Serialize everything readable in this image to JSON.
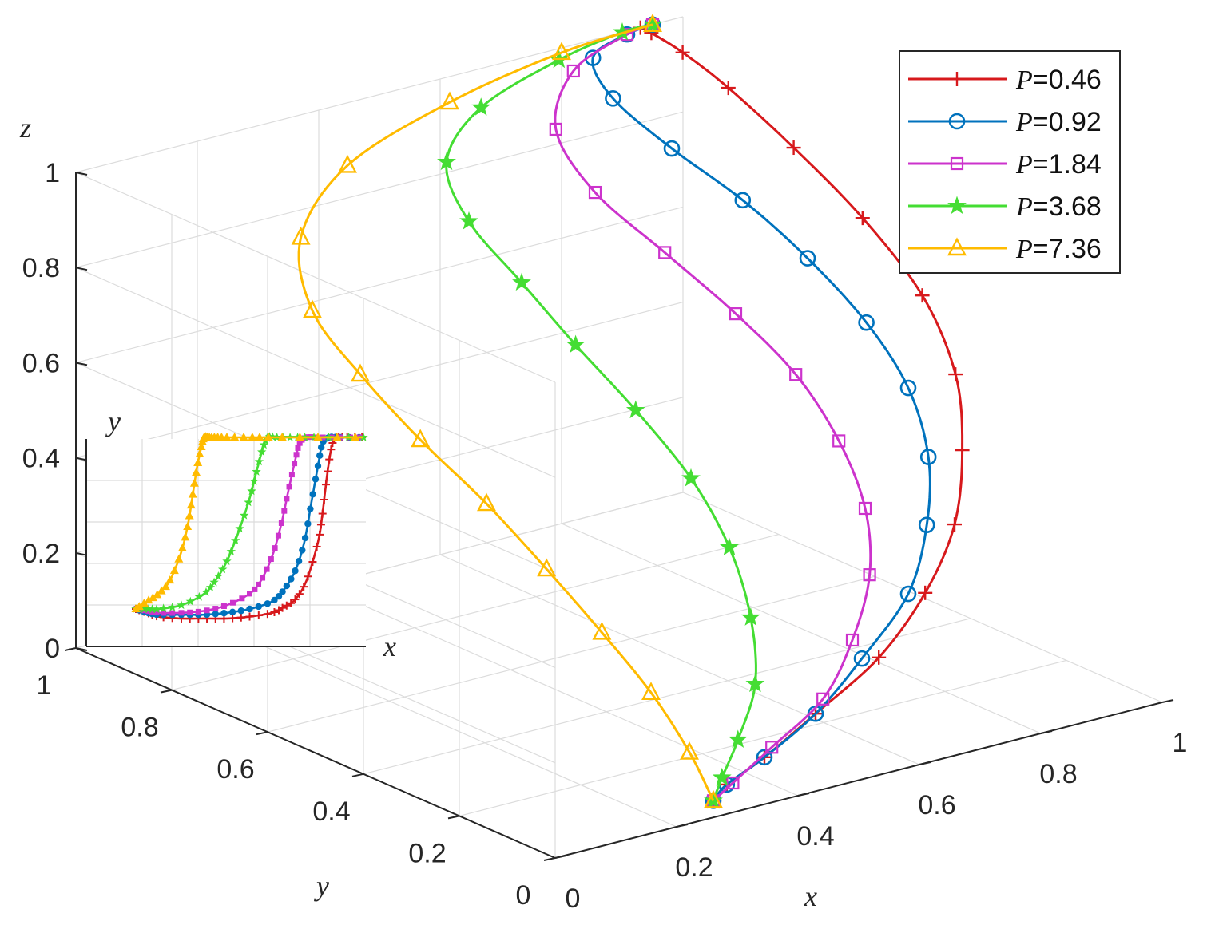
{
  "chart_data": {
    "type": "line",
    "projection": "3d",
    "title": "",
    "xlabel": "x",
    "ylabel": "y",
    "zlabel": "z",
    "xlim": [
      0,
      1
    ],
    "ylim": [
      0,
      1
    ],
    "zlim": [
      0,
      1
    ],
    "xticks": [
      "0",
      "0.2",
      "0.4",
      "0.6",
      "0.8",
      "1"
    ],
    "yticks": [
      "0",
      "0.2",
      "0.4",
      "0.6",
      "0.8",
      "1"
    ],
    "zticks": [
      "0",
      "0.2",
      "0.4",
      "0.6",
      "0.8",
      "1"
    ],
    "grid": true,
    "legend_position": "top-right",
    "series": [
      {
        "name": "=0.46",
        "color": "#d7191c",
        "marker": "plus",
        "x": [
          0.3,
          0.33,
          0.4,
          0.5,
          0.62,
          0.72,
          0.8,
          0.86,
          0.92,
          0.96,
          0.98,
          0.985,
          0.98,
          0.96,
          0.94,
          0.93
        ],
        "y": [
          0.05,
          0.06,
          0.07,
          0.09,
          0.11,
          0.14,
          0.18,
          0.24,
          0.33,
          0.45,
          0.6,
          0.75,
          0.88,
          0.95,
          0.99,
          1.0
        ],
        "z": [
          0.0,
          0.02,
          0.05,
          0.1,
          0.17,
          0.26,
          0.36,
          0.47,
          0.57,
          0.67,
          0.76,
          0.84,
          0.91,
          0.96,
          0.99,
          1.0
        ]
      },
      {
        "name": "=0.92",
        "color": "#0072bd",
        "marker": "circle",
        "x": [
          0.3,
          0.33,
          0.4,
          0.5,
          0.6,
          0.7,
          0.77,
          0.82,
          0.85,
          0.86,
          0.85,
          0.83,
          0.8,
          0.79,
          0.82,
          0.9,
          0.95
        ],
        "y": [
          0.05,
          0.06,
          0.07,
          0.09,
          0.12,
          0.15,
          0.2,
          0.26,
          0.34,
          0.44,
          0.55,
          0.66,
          0.77,
          0.88,
          0.96,
          0.99,
          1.0
        ],
        "z": [
          0.0,
          0.02,
          0.05,
          0.1,
          0.17,
          0.26,
          0.36,
          0.46,
          0.56,
          0.65,
          0.74,
          0.82,
          0.89,
          0.95,
          0.99,
          1.0,
          1.0
        ]
      },
      {
        "name": "=1.84",
        "color": "#cc33cc",
        "marker": "square",
        "x": [
          0.3,
          0.34,
          0.42,
          0.52,
          0.6,
          0.66,
          0.7,
          0.72,
          0.72,
          0.7,
          0.67,
          0.65,
          0.68,
          0.78,
          0.9,
          0.95
        ],
        "y": [
          0.05,
          0.06,
          0.08,
          0.1,
          0.14,
          0.18,
          0.24,
          0.32,
          0.41,
          0.51,
          0.62,
          0.74,
          0.86,
          0.95,
          0.99,
          1.0
        ],
        "z": [
          0.0,
          0.02,
          0.06,
          0.12,
          0.2,
          0.3,
          0.4,
          0.5,
          0.6,
          0.69,
          0.78,
          0.86,
          0.93,
          0.98,
          1.0,
          1.0
        ]
      },
      {
        "name": "=3.68",
        "color": "#44dd33",
        "marker": "star",
        "x": [
          0.3,
          0.33,
          0.38,
          0.44,
          0.48,
          0.5,
          0.5,
          0.48,
          0.46,
          0.45,
          0.45,
          0.5,
          0.62,
          0.78,
          0.9,
          0.95
        ],
        "y": [
          0.05,
          0.07,
          0.1,
          0.14,
          0.2,
          0.27,
          0.35,
          0.44,
          0.54,
          0.64,
          0.75,
          0.86,
          0.94,
          0.98,
          1.0,
          1.0
        ],
        "z": [
          0.0,
          0.03,
          0.08,
          0.16,
          0.26,
          0.37,
          0.48,
          0.59,
          0.69,
          0.78,
          0.86,
          0.92,
          0.96,
          0.99,
          1.0,
          1.0
        ]
      },
      {
        "name": "=7.36",
        "color": "#ffbb00",
        "marker": "triangle",
        "x": [
          0.3,
          0.3,
          0.3,
          0.29,
          0.27,
          0.25,
          0.22,
          0.2,
          0.2,
          0.26,
          0.4,
          0.6,
          0.8,
          0.95
        ],
        "y": [
          0.05,
          0.1,
          0.18,
          0.27,
          0.36,
          0.46,
          0.56,
          0.66,
          0.76,
          0.86,
          0.94,
          0.98,
          1.0,
          1.0
        ],
        "z": [
          0.0,
          0.08,
          0.17,
          0.26,
          0.36,
          0.46,
          0.56,
          0.66,
          0.75,
          0.84,
          0.91,
          0.96,
          0.99,
          1.0
        ]
      }
    ],
    "inset": {
      "xlabel": "x",
      "ylabel": "y",
      "series": [
        {
          "name": "=0.46",
          "x": [
            0,
            0.05,
            0.1,
            0.2,
            0.3,
            0.4,
            0.5,
            0.6,
            0.65,
            0.7,
            0.75,
            0.8,
            0.82,
            0.84,
            0.86,
            0.88,
            0.92,
            1.0
          ],
          "y": [
            0.1,
            0.08,
            0.06,
            0.05,
            0.05,
            0.05,
            0.06,
            0.08,
            0.11,
            0.15,
            0.25,
            0.45,
            0.6,
            0.8,
            0.95,
            1.0,
            1.0,
            1.0
          ]
        },
        {
          "name": "=0.92",
          "x": [
            0,
            0.05,
            0.1,
            0.2,
            0.3,
            0.4,
            0.5,
            0.6,
            0.65,
            0.7,
            0.74,
            0.77,
            0.8,
            0.82,
            0.85,
            0.9,
            1.0
          ],
          "y": [
            0.1,
            0.08,
            0.07,
            0.07,
            0.07,
            0.08,
            0.1,
            0.14,
            0.2,
            0.3,
            0.45,
            0.65,
            0.85,
            0.97,
            1.0,
            1.0,
            1.0
          ]
        },
        {
          "name": "=1.84",
          "x": [
            0,
            0.05,
            0.1,
            0.2,
            0.3,
            0.4,
            0.5,
            0.55,
            0.6,
            0.64,
            0.67,
            0.7,
            0.72,
            0.75,
            0.8,
            0.9,
            1.0
          ],
          "y": [
            0.1,
            0.09,
            0.08,
            0.08,
            0.09,
            0.12,
            0.18,
            0.25,
            0.38,
            0.55,
            0.72,
            0.88,
            0.97,
            1.0,
            1.0,
            1.0,
            1.0
          ]
        },
        {
          "name": "=3.68",
          "x": [
            0,
            0.05,
            0.1,
            0.2,
            0.3,
            0.35,
            0.4,
            0.45,
            0.5,
            0.53,
            0.56,
            0.58,
            0.62,
            0.7,
            0.8,
            1.0
          ],
          "y": [
            0.1,
            0.1,
            0.1,
            0.12,
            0.18,
            0.25,
            0.35,
            0.5,
            0.68,
            0.82,
            0.95,
            1.0,
            1.0,
            1.0,
            1.0,
            1.0
          ]
        },
        {
          "name": "=7.36",
          "x": [
            0,
            0.05,
            0.1,
            0.15,
            0.2,
            0.23,
            0.25,
            0.27,
            0.29,
            0.3,
            0.32,
            0.35,
            0.4,
            0.5,
            0.6,
            0.8,
            1.0
          ],
          "y": [
            0.1,
            0.14,
            0.18,
            0.25,
            0.4,
            0.55,
            0.7,
            0.85,
            0.96,
            1.0,
            1.0,
            1.0,
            1.0,
            1.0,
            1.0,
            1.0,
            1.0
          ]
        }
      ]
    }
  }
}
